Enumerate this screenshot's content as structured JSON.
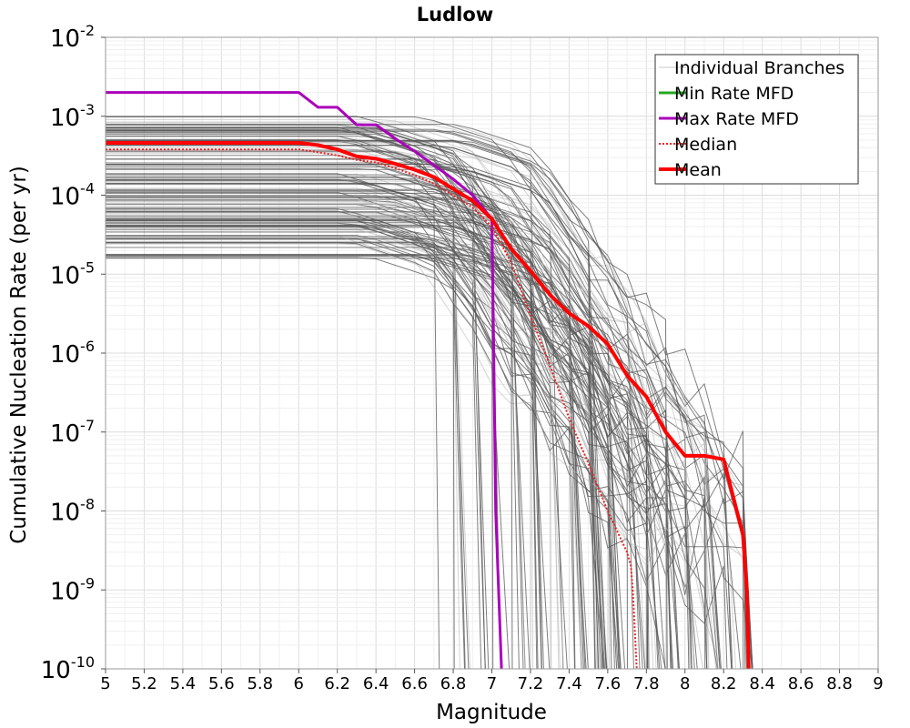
{
  "chart_data": {
    "type": "line",
    "title": "Ludlow",
    "xlabel": "Magnitude",
    "ylabel": "Cumulative Nucleation Rate (per yr)",
    "xlim": [
      5,
      9
    ],
    "ylim_exponents": [
      -10,
      -2
    ],
    "y_scale": "log",
    "grid": true,
    "x_ticks": [
      "5",
      "5.2",
      "5.4",
      "5.6",
      "5.8",
      "6",
      "6.2",
      "6.4",
      "6.6",
      "6.8",
      "7",
      "7.2",
      "7.4",
      "7.6",
      "7.8",
      "8",
      "8.2",
      "8.4",
      "8.6",
      "8.8",
      "9"
    ],
    "y_tick_exponents": [
      "-2",
      "-3",
      "-4",
      "-5",
      "-6",
      "-7",
      "-8",
      "-9",
      "-10"
    ],
    "y_tick_base": "10",
    "legend_position": "top-right",
    "legend": [
      {
        "name": "Individual Branches",
        "color": "#c8c8c8",
        "style": "solid-thin"
      },
      {
        "name": "Min Rate MFD",
        "color": "#22aa22",
        "style": "solid"
      },
      {
        "name": "Max Rate MFD",
        "color": "#aa00bb",
        "style": "solid"
      },
      {
        "name": "Median",
        "color": "#ee2222",
        "style": "dotted"
      },
      {
        "name": "Mean",
        "color": "#ff0000",
        "style": "solid-thick"
      }
    ],
    "branches_color": "#555555",
    "series": [
      {
        "name": "Max Rate MFD",
        "color": "#aa00bb",
        "x": [
          5.0,
          6.0,
          6.1,
          6.2,
          6.3,
          6.4,
          6.5,
          6.6,
          6.7,
          6.8,
          6.9,
          7.0,
          7.01,
          7.02,
          7.05
        ],
        "y": [
          0.002,
          0.002,
          0.0013,
          0.0013,
          0.00078,
          0.00078,
          0.00052,
          0.00036,
          0.00024,
          0.00016,
          0.0001,
          5e-05,
          1e-06,
          1e-08,
          1e-10
        ]
      },
      {
        "name": "Median",
        "color": "#ee2222",
        "x": [
          5.0,
          6.0,
          6.1,
          6.2,
          6.3,
          6.4,
          6.5,
          6.6,
          6.7,
          6.8,
          6.9,
          7.0,
          7.1,
          7.2,
          7.3,
          7.4,
          7.5,
          7.6,
          7.7,
          7.72,
          7.73,
          7.75
        ],
        "y": [
          0.00038,
          0.00038,
          0.00035,
          0.00032,
          0.00028,
          0.00026,
          0.00022,
          0.00018,
          0.00014,
          0.0001,
          7e-05,
          4e-05,
          1.4e-05,
          3e-06,
          7e-07,
          1.5e-07,
          4e-08,
          1e-08,
          3e-09,
          2e-09,
          1e-09,
          1e-10
        ]
      },
      {
        "name": "Mean",
        "color": "#ff0000",
        "x": [
          5.0,
          6.0,
          6.1,
          6.2,
          6.3,
          6.4,
          6.5,
          6.6,
          6.7,
          6.8,
          6.9,
          7.0,
          7.1,
          7.2,
          7.3,
          7.4,
          7.5,
          7.6,
          7.7,
          7.8,
          7.9,
          8.0,
          8.1,
          8.2,
          8.3,
          8.32,
          8.33
        ],
        "y": [
          0.00046,
          0.00046,
          0.00043,
          0.00038,
          0.00031,
          0.00029,
          0.00025,
          0.00021,
          0.00017,
          0.00012,
          8.5e-05,
          5e-05,
          2.1e-05,
          1.1e-05,
          5.5e-06,
          3.2e-06,
          2.2e-06,
          1.3e-06,
          5.2e-07,
          2.8e-07,
          1e-07,
          5e-08,
          5e-08,
          4.5e-08,
          5e-09,
          1e-09,
          1e-10
        ]
      }
    ]
  }
}
